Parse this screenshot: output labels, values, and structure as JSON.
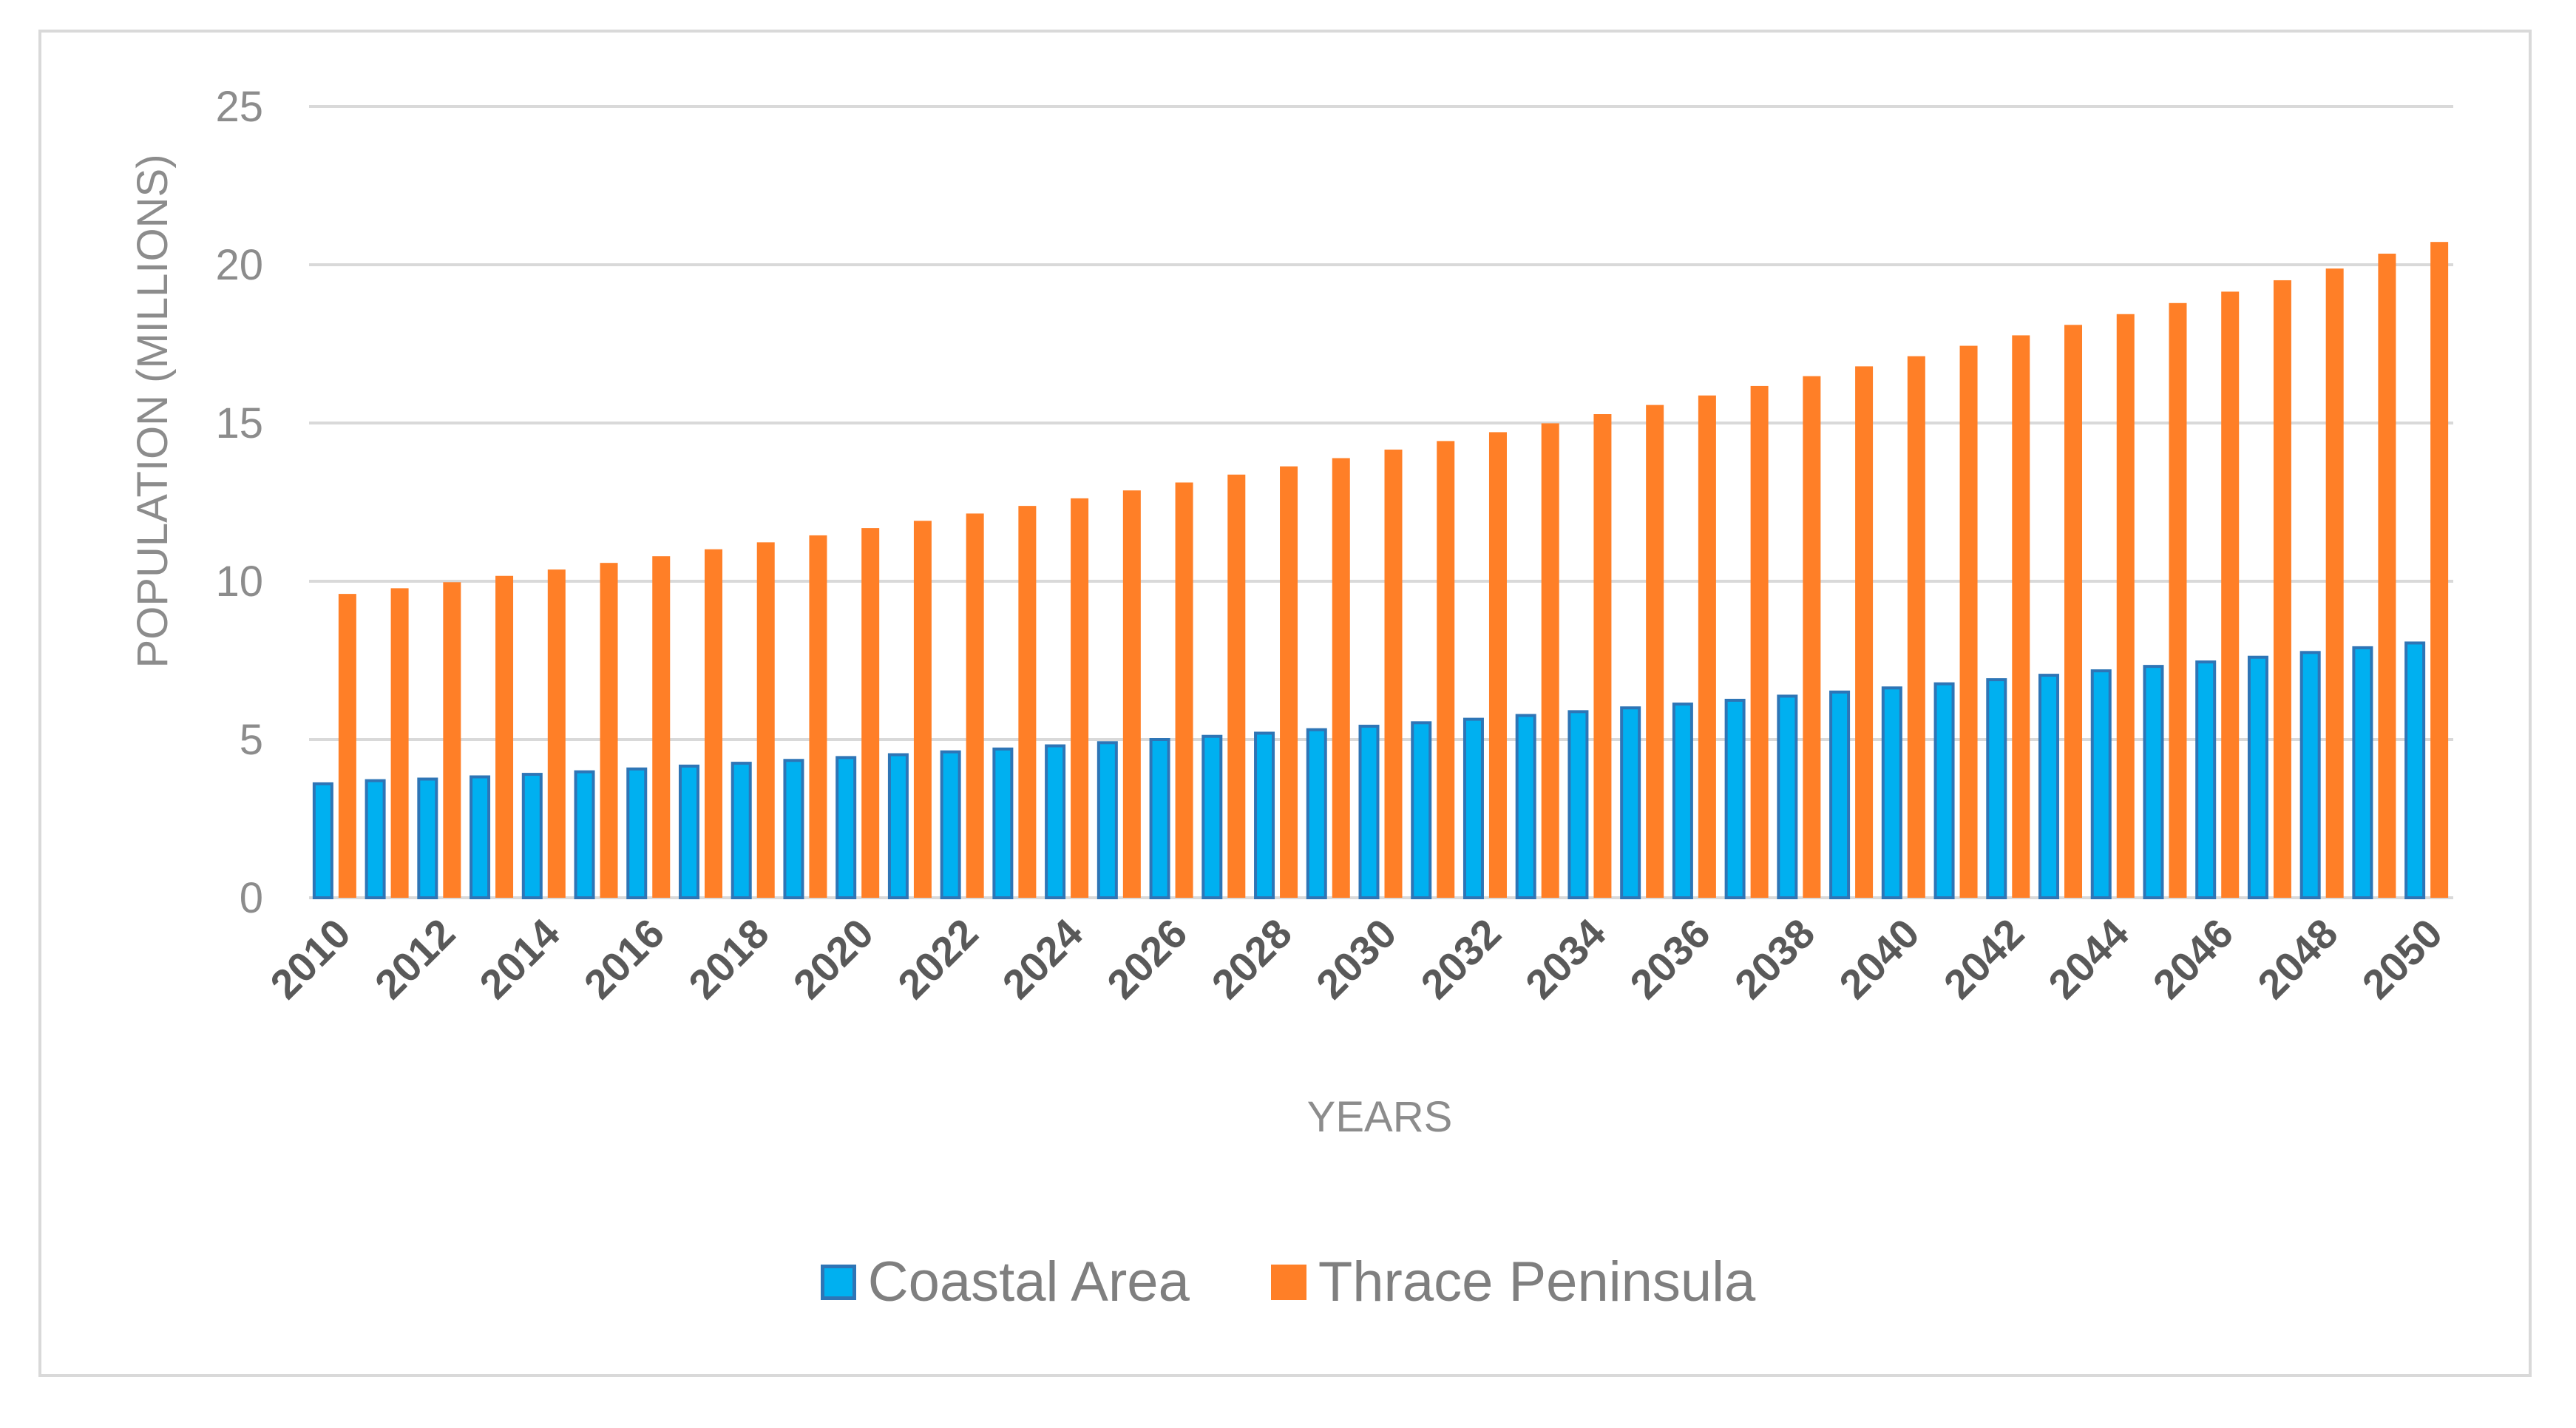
{
  "colors": {
    "coastal_fill": "#00B0F0",
    "coastal_stroke": "#2E75B6",
    "thrace_fill": "#FF7F27",
    "grid": "#d9d9d9",
    "text": "#8c8c8c",
    "tick_text": "#595959"
  },
  "chart_data": {
    "type": "bar",
    "title": "",
    "xlabel": "YEARS",
    "ylabel": "POPULATION (MILLIONS)",
    "ylim": [
      0,
      25
    ],
    "yticks": [
      0,
      5,
      10,
      15,
      20,
      25
    ],
    "grid": true,
    "legend_position": "bottom",
    "categories": [
      "2010",
      "2011",
      "2012",
      "2013",
      "2014",
      "2015",
      "2016",
      "2017",
      "2018",
      "2019",
      "2020",
      "2021",
      "2022",
      "2023",
      "2024",
      "2025",
      "2026",
      "2027",
      "2028",
      "2029",
      "2030",
      "2031",
      "2032",
      "2033",
      "2034",
      "2035",
      "2036",
      "2037",
      "2038",
      "2039",
      "2040",
      "2041",
      "2042",
      "2043",
      "2044",
      "2045",
      "2046",
      "2047",
      "2048",
      "2049",
      "2050"
    ],
    "tick_labels": [
      "2010",
      "2012",
      "2014",
      "2016",
      "2018",
      "2020",
      "2022",
      "2024",
      "2026",
      "2028",
      "2030",
      "2032",
      "2034",
      "2036",
      "2038",
      "2040",
      "2042",
      "2044",
      "2046",
      "2048",
      "2050"
    ],
    "series": [
      {
        "name": "Coastal Area",
        "values": [
          3.6,
          3.7,
          3.75,
          3.82,
          3.9,
          3.98,
          4.07,
          4.16,
          4.25,
          4.34,
          4.43,
          4.52,
          4.61,
          4.7,
          4.8,
          4.9,
          5.0,
          5.1,
          5.2,
          5.31,
          5.42,
          5.53,
          5.64,
          5.76,
          5.88,
          6.0,
          6.12,
          6.24,
          6.37,
          6.5,
          6.63,
          6.76,
          6.89,
          7.03,
          7.17,
          7.31,
          7.45,
          7.6,
          7.75,
          7.9,
          8.05
        ]
      },
      {
        "name": "Thrace Peninsula",
        "values": [
          9.6,
          9.78,
          9.97,
          10.17,
          10.37,
          10.58,
          10.79,
          11.01,
          11.23,
          11.45,
          11.68,
          11.91,
          12.14,
          12.38,
          12.62,
          12.87,
          13.12,
          13.37,
          13.63,
          13.89,
          14.16,
          14.43,
          14.71,
          14.99,
          15.28,
          15.57,
          15.87,
          16.17,
          16.48,
          16.79,
          17.11,
          17.44,
          17.77,
          18.1,
          18.44,
          18.79,
          19.15,
          19.51,
          19.88,
          20.35,
          20.72
        ]
      }
    ]
  }
}
